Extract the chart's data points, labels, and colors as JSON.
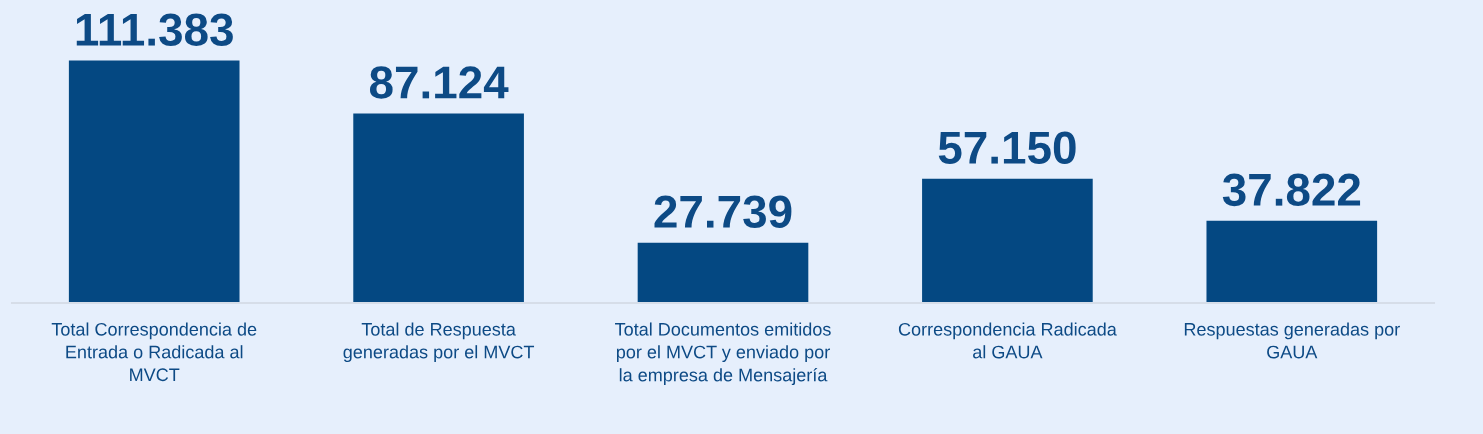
{
  "chart_data": {
    "type": "bar",
    "categories": [
      "Total Correspondencia de\nEntrada o Radicada al\nMVCT",
      "Total de Respuesta\ngeneradas por el MVCT",
      "Total Documentos emitidos\npor el MVCT y enviado por\nla empresa de Mensajería",
      "Correspondencia Radicada\nal GAUA",
      "Respuestas generadas por\nGAUA"
    ],
    "values": [
      111383,
      87124,
      27739,
      57150,
      37822
    ],
    "value_labels": [
      "111.383",
      "87.124",
      "27.739",
      "57.150",
      "37.822"
    ],
    "color": "#044882"
  }
}
